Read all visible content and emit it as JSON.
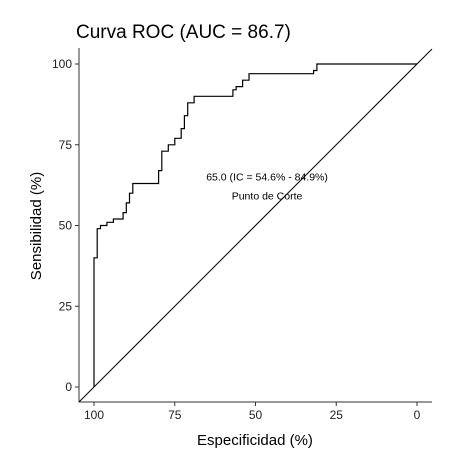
{
  "chart_data": {
    "type": "line",
    "title": "Curva ROC (AUC = 86.7)",
    "xlabel": "Especificidad (%)",
    "ylabel": "Sensibilidad (%)",
    "xlim": [
      100,
      0
    ],
    "ylim": [
      0,
      100
    ],
    "x_reversed": true,
    "x_ticks": [
      100,
      75,
      50,
      25,
      0
    ],
    "y_ticks": [
      0,
      25,
      50,
      75,
      100
    ],
    "grid": false,
    "series": [
      {
        "points": [
          [
            100,
            0
          ],
          [
            100,
            40
          ],
          [
            99,
            40
          ],
          [
            99,
            49
          ],
          [
            98,
            49
          ],
          [
            98,
            50
          ],
          [
            96,
            50
          ],
          [
            96,
            51
          ],
          [
            94,
            51
          ],
          [
            94,
            52
          ],
          [
            91,
            52
          ],
          [
            91,
            54
          ],
          [
            90,
            54
          ],
          [
            90,
            57
          ],
          [
            89,
            57
          ],
          [
            89,
            60
          ],
          [
            88,
            60
          ],
          [
            88,
            63
          ],
          [
            80,
            63
          ],
          [
            80,
            67
          ],
          [
            79,
            67
          ],
          [
            79,
            73
          ],
          [
            77,
            73
          ],
          [
            77,
            75
          ],
          [
            75,
            75
          ],
          [
            75,
            77
          ],
          [
            73,
            77
          ],
          [
            73,
            80
          ],
          [
            72,
            80
          ],
          [
            72,
            84
          ],
          [
            71,
            84
          ],
          [
            71,
            88
          ],
          [
            69,
            88
          ],
          [
            69,
            90
          ],
          [
            57,
            90
          ],
          [
            57,
            92
          ],
          [
            56,
            92
          ],
          [
            56,
            93
          ],
          [
            54,
            93
          ],
          [
            54,
            95
          ],
          [
            52,
            95
          ],
          [
            52,
            97
          ],
          [
            32,
            97
          ],
          [
            32,
            98
          ],
          [
            31,
            98
          ],
          [
            31,
            100
          ],
          [
            0,
            100
          ]
        ]
      }
    ],
    "reference_line": {
      "from": [
        100,
        0
      ],
      "to": [
        0,
        100
      ]
    },
    "annotations": [
      {
        "text": "65.0 (IC = 54.6% - 84.9%)",
        "x": 65,
        "y": 64
      },
      {
        "text": "Punto de Corte",
        "x": 65,
        "y": 58
      }
    ]
  }
}
